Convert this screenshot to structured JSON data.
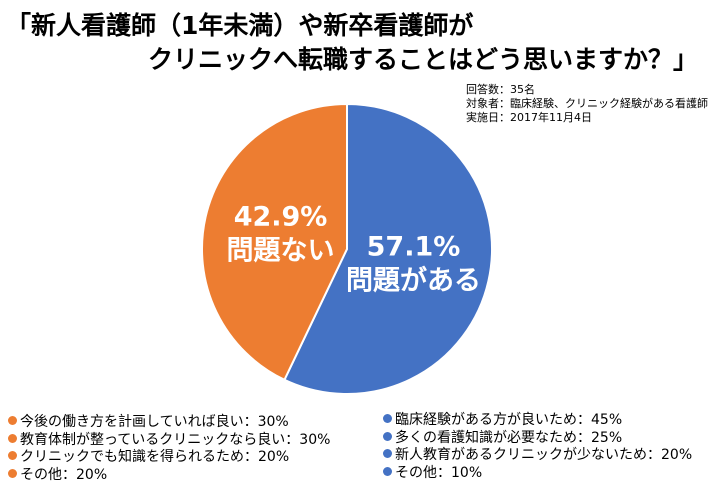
{
  "chart_data": {
    "type": "pie",
    "title_line1": "「新人看護師（1年未満）や新卒看護師が",
    "title_line2": "クリニックへ転職することはどう思いますか？」",
    "meta": [
      "回答数：35名",
      "対象者：臨床経験、クリニック経験がある看護師",
      "実施日：2017年11月4日"
    ],
    "slices": [
      {
        "label": "問題がある",
        "pct_label": "57.1%",
        "value": 57.1,
        "color": "#4472C4"
      },
      {
        "label": "問題ない",
        "pct_label": "42.9%",
        "value": 42.9,
        "color": "#ED7D31"
      }
    ],
    "legend_left": {
      "color": "#ED7D31",
      "items": [
        "今後の働き方を計画していれば良い：30%",
        "教育体制が整っているクリニックなら良い：30%",
        "クリニックでも知識を得られるため：20%",
        "その他：20%"
      ]
    },
    "legend_right": {
      "color": "#4472C4",
      "items": [
        "臨床経験がある方が良いため：45%",
        "多くの看護知識が必要なため：25%",
        "新人教育があるクリニックが少ないため：20%",
        "その他：10%"
      ]
    }
  }
}
